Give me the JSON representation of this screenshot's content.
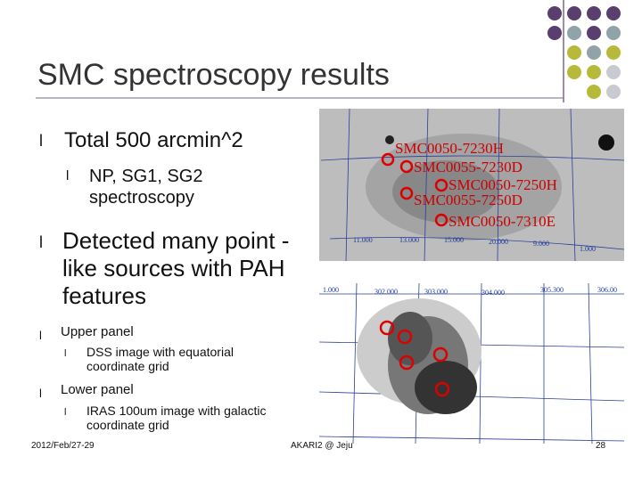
{
  "title": "SMC spectroscopy results",
  "bullet_symbol": "l",
  "bullets": [
    {
      "text": "Total 500 arcmin^2",
      "children": [
        "NP, SG1, SG2 spectroscopy"
      ]
    },
    {
      "text": "Detected many point -like sources with PAH features",
      "children": []
    },
    {
      "text": "Upper panel",
      "children": [
        "DSS image with equatorial coordinate grid"
      ]
    },
    {
      "text": "Lower panel",
      "children": [
        "IRAS 100um image with galactic coordinate grid"
      ]
    }
  ],
  "upper_panel": {
    "sources": [
      "SMC0050-7230H",
      "SMC0055-7230D",
      "SMC0050-7250H",
      "SMC0055-7250D",
      "SMC0050-7310E"
    ],
    "grid_labels": [
      "11.000",
      "13.000",
      "15.000",
      "20.000",
      "9.000",
      "1.000"
    ]
  },
  "lower_panel": {
    "grid_labels": [
      "1.000",
      "302.000",
      "303.000",
      "304.000",
      "305.300",
      "306.00"
    ]
  },
  "footer": {
    "date": "2012/Feb/27-29",
    "event": "AKARI2 @ Jeju",
    "page": "28"
  }
}
